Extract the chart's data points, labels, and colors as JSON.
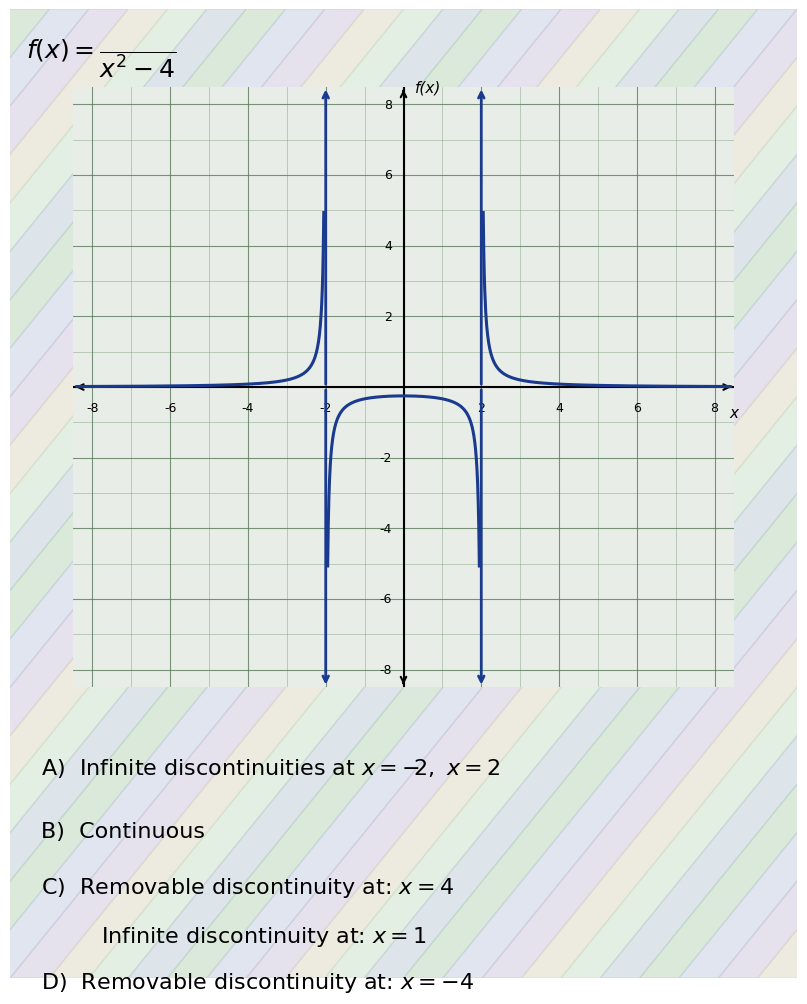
{
  "title_formula": "f(x) = \\frac{\\square}{x^2 - 4}",
  "numerator_line": "——",
  "denominator": "x\\u00b2 - 4",
  "xlabel": "x",
  "ylabel": "f(x)",
  "xlim": [
    -8.5,
    8.5
  ],
  "ylim": [
    -8.5,
    8.5
  ],
  "xticks": [
    -8,
    -6,
    -4,
    -2,
    2,
    4,
    6,
    8
  ],
  "yticks": [
    -8,
    -6,
    -4,
    -2,
    2,
    4,
    6,
    8
  ],
  "curve_color": "#1a3a8f",
  "asymptote_color": "#1a3a8f",
  "grid_color": "#4a7a4a",
  "grid_alpha": 0.4,
  "background_color_inner": "#e8f0e8",
  "answer_A": "A)  Infinite discontinuities at x = -2,  x = 2",
  "answer_B": "B)  Continuous",
  "answer_C1": "C)  Removable discontinuity at:  x = 4",
  "answer_C2": "     Infinite discontinuity at:  x = 1",
  "answer_D": "D)  Removable discontinuity at:  x = −4",
  "bg_color": "#c8d8c0",
  "stripe_colors": [
    "#d0e8d0",
    "#c0d0e8",
    "#d8d0e8",
    "#e8e0c0"
  ],
  "asymptotes": [
    -2,
    2
  ],
  "function_scale": 1
}
